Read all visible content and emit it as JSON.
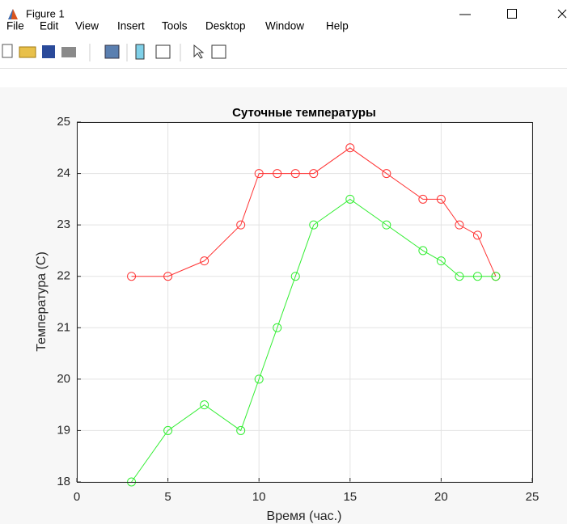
{
  "window": {
    "title": "Figure 1",
    "menu": [
      "File",
      "Edit",
      "View",
      "Insert",
      "Tools",
      "Desktop",
      "Window",
      "Help"
    ]
  },
  "chart_data": {
    "type": "line",
    "title": "Суточные температуры",
    "x_label": "Время (час.)",
    "y_label": "Температура (C)",
    "x": [
      3,
      5,
      7,
      9,
      10,
      11,
      12,
      13,
      15,
      17,
      19,
      20,
      21,
      22,
      23
    ],
    "series": [
      {
        "color": "#ff3333",
        "values": [
          22,
          22,
          22.3,
          23,
          24,
          24,
          24,
          24,
          24.5,
          24,
          23.5,
          23.5,
          23,
          22.8,
          22
        ]
      },
      {
        "color": "#33ee33",
        "values": [
          18,
          19,
          19.5,
          19,
          20,
          21,
          22,
          23,
          23.5,
          23,
          22.5,
          22.3,
          22,
          22,
          22
        ]
      }
    ],
    "xlim": [
      0,
      25
    ],
    "xticks": [
      0,
      5,
      10,
      15,
      20,
      25
    ],
    "ylim": [
      18,
      25
    ],
    "yticks": [
      18,
      19,
      20,
      21,
      22,
      23,
      24,
      25
    ],
    "grid": true
  }
}
